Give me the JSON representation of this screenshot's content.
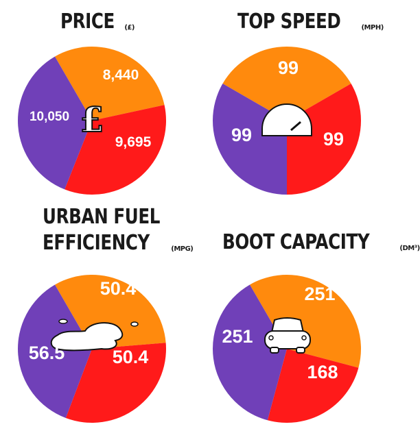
{
  "colors": {
    "purple": "#7040b8",
    "orange": "#ff8a0d",
    "red": "#ff1a1a"
  },
  "chart_data": [
    {
      "type": "pie",
      "title": "PRICE",
      "unit": "(£)",
      "icon": "pound-sign-icon",
      "icon_text": "£",
      "slices": [
        {
          "label": "8,440",
          "value": 8440,
          "color": "orange"
        },
        {
          "label": "9,695",
          "value": 9695,
          "color": "red"
        },
        {
          "label": "10,050",
          "value": 10050,
          "color": "purple"
        }
      ]
    },
    {
      "type": "pie",
      "title": "TOP SPEED",
      "unit": "(MPH)",
      "icon": "speedometer-icon",
      "slices": [
        {
          "label": "99",
          "value": 99,
          "color": "orange"
        },
        {
          "label": "99",
          "value": 99,
          "color": "red"
        },
        {
          "label": "99",
          "value": 99,
          "color": "purple"
        }
      ]
    },
    {
      "type": "pie",
      "title_line1": "URBAN FUEL",
      "title_line2": "EFFICIENCY",
      "unit": "(MPG)",
      "icon": "fuel-puddle-icon",
      "slices": [
        {
          "label": "50.4",
          "value": 50.4,
          "color": "orange"
        },
        {
          "label": "50.4",
          "value": 50.4,
          "color": "red"
        },
        {
          "label": "56.5",
          "value": 56.5,
          "color": "purple"
        }
      ]
    },
    {
      "type": "pie",
      "title": "BOOT CAPACITY",
      "unit": "(DM³)",
      "icon": "car-icon",
      "slices": [
        {
          "label": "251",
          "value": 251,
          "color": "orange"
        },
        {
          "label": "168",
          "value": 168,
          "color": "red"
        },
        {
          "label": "251",
          "value": 251,
          "color": "purple"
        }
      ]
    }
  ]
}
